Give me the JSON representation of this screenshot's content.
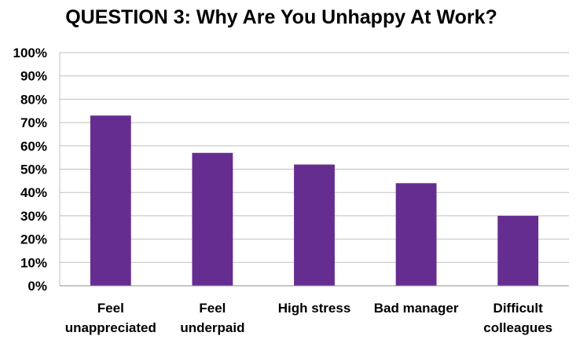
{
  "chart_data": {
    "type": "bar",
    "title": "QUESTION 3: Why Are You Unhappy At Work?",
    "xlabel": "",
    "ylabel": "",
    "categories": [
      [
        "Feel",
        "unappreciated"
      ],
      [
        "Feel",
        "underpaid"
      ],
      [
        "High stress"
      ],
      [
        "Bad manager"
      ],
      [
        "Difficult",
        "colleagues"
      ]
    ],
    "values": [
      73,
      57,
      52,
      44,
      30
    ],
    "value_unit": "%",
    "ylim": [
      0,
      100
    ],
    "yticks": [
      "0%",
      "10%",
      "20%",
      "30%",
      "40%",
      "50%",
      "60%",
      "70%",
      "80%",
      "90%",
      "100%"
    ],
    "grid": true,
    "legend": "none",
    "bar_color": "#662d91"
  }
}
